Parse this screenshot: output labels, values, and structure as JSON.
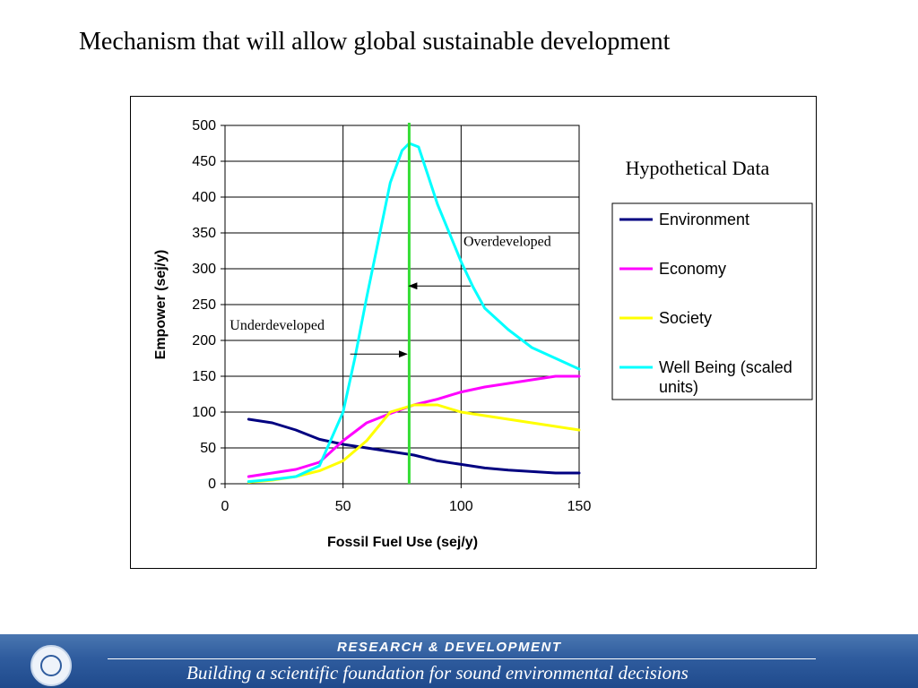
{
  "slide": {
    "title": "Mechanism that will allow global sustainable development"
  },
  "footer": {
    "line1": "RESEARCH &  DEVELOPMENT",
    "line2": "Building a scientific foundation for sound environmental decisions",
    "logo_icon": "epa-seal-icon"
  },
  "chart_data": {
    "type": "line",
    "title": "",
    "subtitle": "Hypothetical Data",
    "xlabel": "Fossil Fuel Use (sej/y)",
    "ylabel": "Empower (sej/y)",
    "xlim": [
      0,
      150
    ],
    "ylim": [
      0,
      500
    ],
    "xticks": [
      0,
      50,
      100,
      150
    ],
    "yticks": [
      0,
      50,
      100,
      150,
      200,
      250,
      300,
      350,
      400,
      450,
      500
    ],
    "grid": {
      "horizontal": true,
      "vertical": true
    },
    "legend": "right",
    "series": [
      {
        "name": "Environment",
        "color": "#000080",
        "points": [
          [
            10,
            90
          ],
          [
            20,
            85
          ],
          [
            30,
            75
          ],
          [
            40,
            62
          ],
          [
            50,
            55
          ],
          [
            60,
            50
          ],
          [
            70,
            45
          ],
          [
            80,
            40
          ],
          [
            90,
            32
          ],
          [
            100,
            27
          ],
          [
            110,
            22
          ],
          [
            120,
            19
          ],
          [
            130,
            17
          ],
          [
            140,
            15
          ],
          [
            150,
            15
          ]
        ]
      },
      {
        "name": "Economy",
        "color": "#ff00ff",
        "points": [
          [
            10,
            10
          ],
          [
            20,
            15
          ],
          [
            30,
            20
          ],
          [
            40,
            30
          ],
          [
            50,
            60
          ],
          [
            60,
            85
          ],
          [
            70,
            98
          ],
          [
            80,
            110
          ],
          [
            90,
            118
          ],
          [
            100,
            128
          ],
          [
            110,
            135
          ],
          [
            120,
            140
          ],
          [
            130,
            145
          ],
          [
            140,
            150
          ],
          [
            150,
            150
          ]
        ]
      },
      {
        "name": "Society",
        "color": "#ffff00",
        "points": [
          [
            10,
            2
          ],
          [
            20,
            5
          ],
          [
            30,
            10
          ],
          [
            40,
            18
          ],
          [
            50,
            32
          ],
          [
            60,
            60
          ],
          [
            70,
            100
          ],
          [
            80,
            110
          ],
          [
            90,
            110
          ],
          [
            100,
            100
          ],
          [
            110,
            95
          ],
          [
            120,
            90
          ],
          [
            130,
            85
          ],
          [
            140,
            80
          ],
          [
            150,
            75
          ]
        ]
      },
      {
        "name": "Well Being (scaled units)",
        "color": "#00ffff",
        "points": [
          [
            10,
            3
          ],
          [
            20,
            6
          ],
          [
            30,
            10
          ],
          [
            40,
            25
          ],
          [
            50,
            100
          ],
          [
            55,
            175
          ],
          [
            60,
            260
          ],
          [
            65,
            340
          ],
          [
            70,
            420
          ],
          [
            75,
            465
          ],
          [
            78,
            475
          ],
          [
            82,
            470
          ],
          [
            86,
            430
          ],
          [
            90,
            390
          ],
          [
            95,
            350
          ],
          [
            100,
            310
          ],
          [
            105,
            275
          ],
          [
            110,
            245
          ],
          [
            120,
            215
          ],
          [
            130,
            190
          ],
          [
            140,
            175
          ],
          [
            150,
            160
          ]
        ]
      }
    ],
    "vertical_line": {
      "x": 78,
      "color": "#33dd33"
    },
    "annotations": [
      {
        "text": "Underdeveloped",
        "x": 2,
        "y": 215,
        "arrow_from": [
          53,
          181
        ],
        "arrow_to": [
          77,
          181
        ]
      },
      {
        "text": "Overdeveloped",
        "x": 101,
        "y": 332,
        "arrow_from": [
          104,
          276
        ],
        "arrow_to": [
          78,
          276
        ]
      }
    ]
  }
}
